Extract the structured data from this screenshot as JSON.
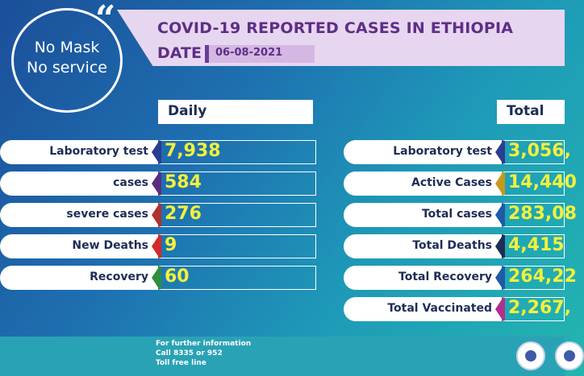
{
  "badge": {
    "line1": "No Mask",
    "line2": "No service",
    "quote_icon": "quote-icon"
  },
  "header": {
    "title": "COVID-19 REPORTED CASES IN ETHIOPIA",
    "date_label": "DATE",
    "date_value": "06-08-2021"
  },
  "daily": {
    "heading": "Daily",
    "rows": [
      {
        "label": "Laboratory test",
        "value": "7,938",
        "color": "#2a3d8f"
      },
      {
        "label": "cases",
        "value": "584",
        "color": "#5a2c7e"
      },
      {
        "label": "severe cases",
        "value": "276",
        "color": "#b0312e"
      },
      {
        "label": "New Deaths",
        "value": "9",
        "color": "#d32a2a"
      },
      {
        "label": "Recovery",
        "value": "60",
        "color": "#2f8f3a"
      }
    ]
  },
  "total": {
    "heading": "Total",
    "rows": [
      {
        "label": "Laboratory test",
        "value": "3,056,",
        "color": "#2a3d8f"
      },
      {
        "label": "Active Cases",
        "value": "14,440",
        "color": "#c49a1d"
      },
      {
        "label": "Total cases",
        "value": "283,08",
        "color": "#1d5aa8"
      },
      {
        "label": "Total Deaths",
        "value": "4,415",
        "color": "#1d2d55"
      },
      {
        "label": "Total Recovery",
        "value": "264,22",
        "color": "#1d5aa8"
      },
      {
        "label": "Total Vaccinated",
        "value": "2,267,",
        "color": "#b0308e"
      }
    ]
  },
  "footer": {
    "line1": "For further information",
    "line2": "Call 8335 or 952",
    "line3": "Toll free line"
  },
  "colors": {
    "value_text": "#f4f13a",
    "title": "#5d2f86"
  }
}
